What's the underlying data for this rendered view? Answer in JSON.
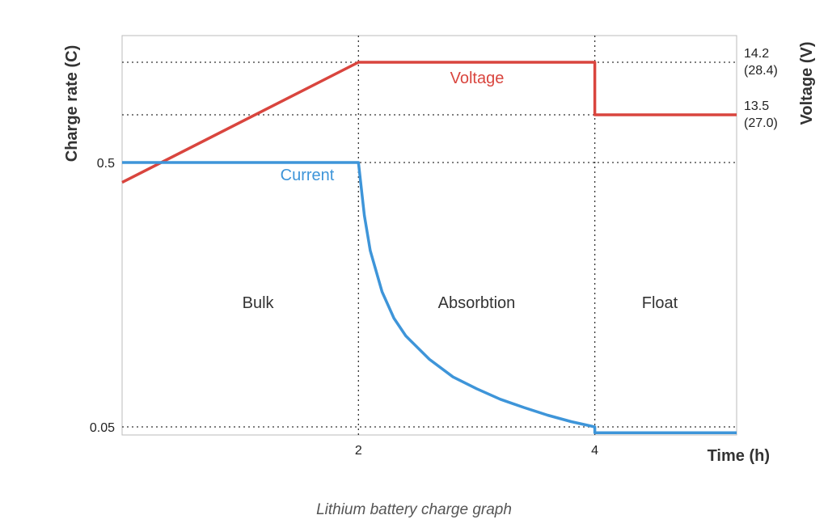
{
  "caption": "Lithium battery charge graph",
  "colors": {
    "voltage": "#d9453e",
    "current": "#3e95d9",
    "grid": "#333333",
    "frame": "#bbbbbb"
  },
  "chart_data": {
    "type": "line",
    "xlabel": "Time (h)",
    "ylabel_left": "Charge rate (C)",
    "ylabel_right": "Voltage (V)",
    "xlim": [
      0,
      5.2
    ],
    "x_ticks": [
      {
        "value": 2,
        "label": "2"
      },
      {
        "value": 4,
        "label": "4"
      }
    ],
    "left_ticks": [
      {
        "value": 0.5,
        "label": "0.5"
      },
      {
        "value": 0.05,
        "label": "0.05"
      }
    ],
    "right_ticks": [
      {
        "value": 14.2,
        "label": "14.2",
        "sublabel": "(28.4)"
      },
      {
        "value": 13.5,
        "label": "13.5",
        "sublabel": "(27.0)"
      }
    ],
    "phases": [
      {
        "label": "Bulk",
        "x_center": 1.15
      },
      {
        "label": "Absorbtion",
        "x_center": 3.0
      },
      {
        "label": "Float",
        "x_center": 4.55
      }
    ],
    "series": [
      {
        "name": "Voltage",
        "axis": "right",
        "points": [
          [
            0,
            12.6
          ],
          [
            2,
            14.2
          ],
          [
            4,
            14.2
          ],
          [
            4,
            13.5
          ],
          [
            5.2,
            13.5
          ]
        ]
      },
      {
        "name": "Current",
        "axis": "left",
        "points": [
          [
            0,
            0.5
          ],
          [
            2,
            0.5
          ],
          [
            2.05,
            0.41
          ],
          [
            2.1,
            0.35
          ],
          [
            2.2,
            0.28
          ],
          [
            2.3,
            0.235
          ],
          [
            2.4,
            0.205
          ],
          [
            2.6,
            0.165
          ],
          [
            2.8,
            0.135
          ],
          [
            3.0,
            0.115
          ],
          [
            3.2,
            0.097
          ],
          [
            3.4,
            0.083
          ],
          [
            3.6,
            0.07
          ],
          [
            3.8,
            0.059
          ],
          [
            4.0,
            0.05
          ],
          [
            4.0,
            0.04
          ],
          [
            5.2,
            0.04
          ]
        ]
      }
    ],
    "grid": "dotted at tick values",
    "legend": "none"
  }
}
